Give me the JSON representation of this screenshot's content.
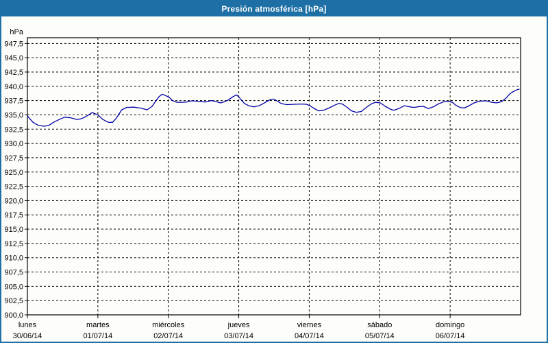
{
  "window": {
    "title": "Presión atmosférica [hPa]"
  },
  "colors": {
    "frame_border": "#1d6fa5",
    "titlebar_bg": "#1d6fa5",
    "title_text": "#ffffff",
    "chart_bg": "#fdfdfa",
    "plot_border": "#000000",
    "gridline": "#000000",
    "line": "#0000a8",
    "label_text": "#000000"
  },
  "chart_data": {
    "type": "line",
    "title": "Presión atmosférica [hPa]",
    "ylabel": "hPa",
    "ylim": [
      900,
      948.5
    ],
    "ytick_step": 2.5,
    "ytick_labels": [
      "947,5",
      "945,0",
      "942,5",
      "940,0",
      "937,5",
      "935,0",
      "932,5",
      "930,0",
      "927,5",
      "925,0",
      "922,5",
      "920,0",
      "917,5",
      "915,0",
      "912,5",
      "910,0",
      "907,5",
      "905,0",
      "902,5",
      "900,0"
    ],
    "grid": "dashed",
    "legend": "none",
    "x_axis_days": [
      {
        "name": "lunes",
        "date": "30/06/14"
      },
      {
        "name": "martes",
        "date": "01/07/14"
      },
      {
        "name": "miércoles",
        "date": "02/07/14"
      },
      {
        "name": "jueves",
        "date": "03/07/14"
      },
      {
        "name": "viernes",
        "date": "04/07/14"
      },
      {
        "name": "sábado",
        "date": "05/07/14"
      },
      {
        "name": "domingo",
        "date": "06/07/14"
      }
    ],
    "series": [
      {
        "name": "Presión atmosférica",
        "unit": "hPa",
        "color": "#0000a8",
        "x_days": [
          0.0,
          0.08,
          0.15,
          0.24,
          0.31,
          0.37,
          0.47,
          0.53,
          0.61,
          0.7,
          0.76,
          0.83,
          0.92,
          1.0,
          1.07,
          1.15,
          1.21,
          1.26,
          1.34,
          1.41,
          1.51,
          1.6,
          1.7,
          1.77,
          1.82,
          1.87,
          1.91,
          1.94,
          2.01,
          2.06,
          2.12,
          2.19,
          2.26,
          2.33,
          2.41,
          2.48,
          2.53,
          2.61,
          2.67,
          2.74,
          2.8,
          2.85,
          2.92,
          2.97,
          3.01,
          3.08,
          3.14,
          3.21,
          3.29,
          3.38,
          3.45,
          3.5,
          3.55,
          3.6,
          3.65,
          3.69,
          3.79,
          3.89,
          3.96,
          4.01,
          4.06,
          4.13,
          4.2,
          4.28,
          4.36,
          4.42,
          4.47,
          4.54,
          4.6,
          4.67,
          4.74,
          4.81,
          4.88,
          4.94,
          5.01,
          5.08,
          5.15,
          5.2,
          5.27,
          5.35,
          5.43,
          5.49,
          5.56,
          5.62,
          5.69,
          5.76,
          5.83,
          5.91,
          5.98,
          6.03,
          6.08,
          6.14,
          6.2,
          6.27,
          6.34,
          6.42,
          6.51,
          6.59,
          6.66,
          6.73,
          6.79,
          6.85,
          6.9,
          6.95,
          6.98
        ],
        "values": [
          934.8,
          933.7,
          933.2,
          933.0,
          933.2,
          933.7,
          934.3,
          934.6,
          934.5,
          934.2,
          934.3,
          934.7,
          935.4,
          935.0,
          934.2,
          933.7,
          933.7,
          934.4,
          935.9,
          936.3,
          936.35,
          936.2,
          935.9,
          936.5,
          937.4,
          938.2,
          938.6,
          938.5,
          938.1,
          937.5,
          937.2,
          937.2,
          937.25,
          937.45,
          937.4,
          937.3,
          937.25,
          937.5,
          937.35,
          937.1,
          937.3,
          937.6,
          938.2,
          938.5,
          938.0,
          937.0,
          936.6,
          936.4,
          936.6,
          937.2,
          937.7,
          937.75,
          937.4,
          937.0,
          936.85,
          936.8,
          936.85,
          936.9,
          936.85,
          936.6,
          936.2,
          935.7,
          935.8,
          936.2,
          936.7,
          937.0,
          936.9,
          936.3,
          935.7,
          935.45,
          935.6,
          936.3,
          936.9,
          937.2,
          937.1,
          936.5,
          936.0,
          935.8,
          936.1,
          936.6,
          936.4,
          936.3,
          936.45,
          936.5,
          936.1,
          936.4,
          936.9,
          937.3,
          937.35,
          937.2,
          936.7,
          936.3,
          936.2,
          936.6,
          937.1,
          937.4,
          937.45,
          937.2,
          937.1,
          937.3,
          937.9,
          938.7,
          939.1,
          939.4,
          939.5
        ]
      }
    ]
  }
}
